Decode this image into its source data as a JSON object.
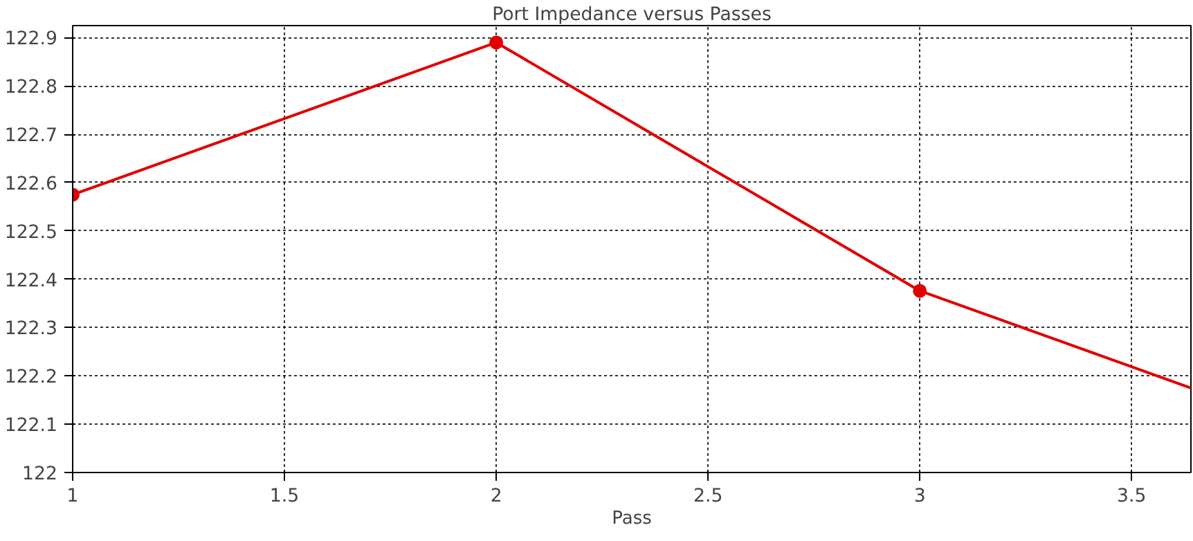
{
  "chart_data": {
    "type": "line",
    "title": "Port Impedance versus Passes",
    "xlabel": "Pass",
    "series": [
      {
        "color": "#e00000",
        "x": [
          1,
          2,
          3
        ],
        "values": [
          122.575,
          122.89,
          122.376
        ],
        "marker": "circle"
      },
      {
        "color": "#e00000",
        "x": [
          3,
          3.64
        ],
        "values": [
          122.376,
          122.175
        ],
        "marker": "none"
      }
    ],
    "xlim": [
      1,
      3.64
    ],
    "xticks": [
      1,
      1.5,
      2,
      2.5,
      3,
      3.5
    ],
    "ylim": [
      122,
      122.925
    ],
    "yticks": [
      122,
      122.1,
      122.2,
      122.3,
      122.4,
      122.5,
      122.6,
      122.7,
      122.8,
      122.9
    ],
    "grid": true,
    "line_style": "solid"
  }
}
